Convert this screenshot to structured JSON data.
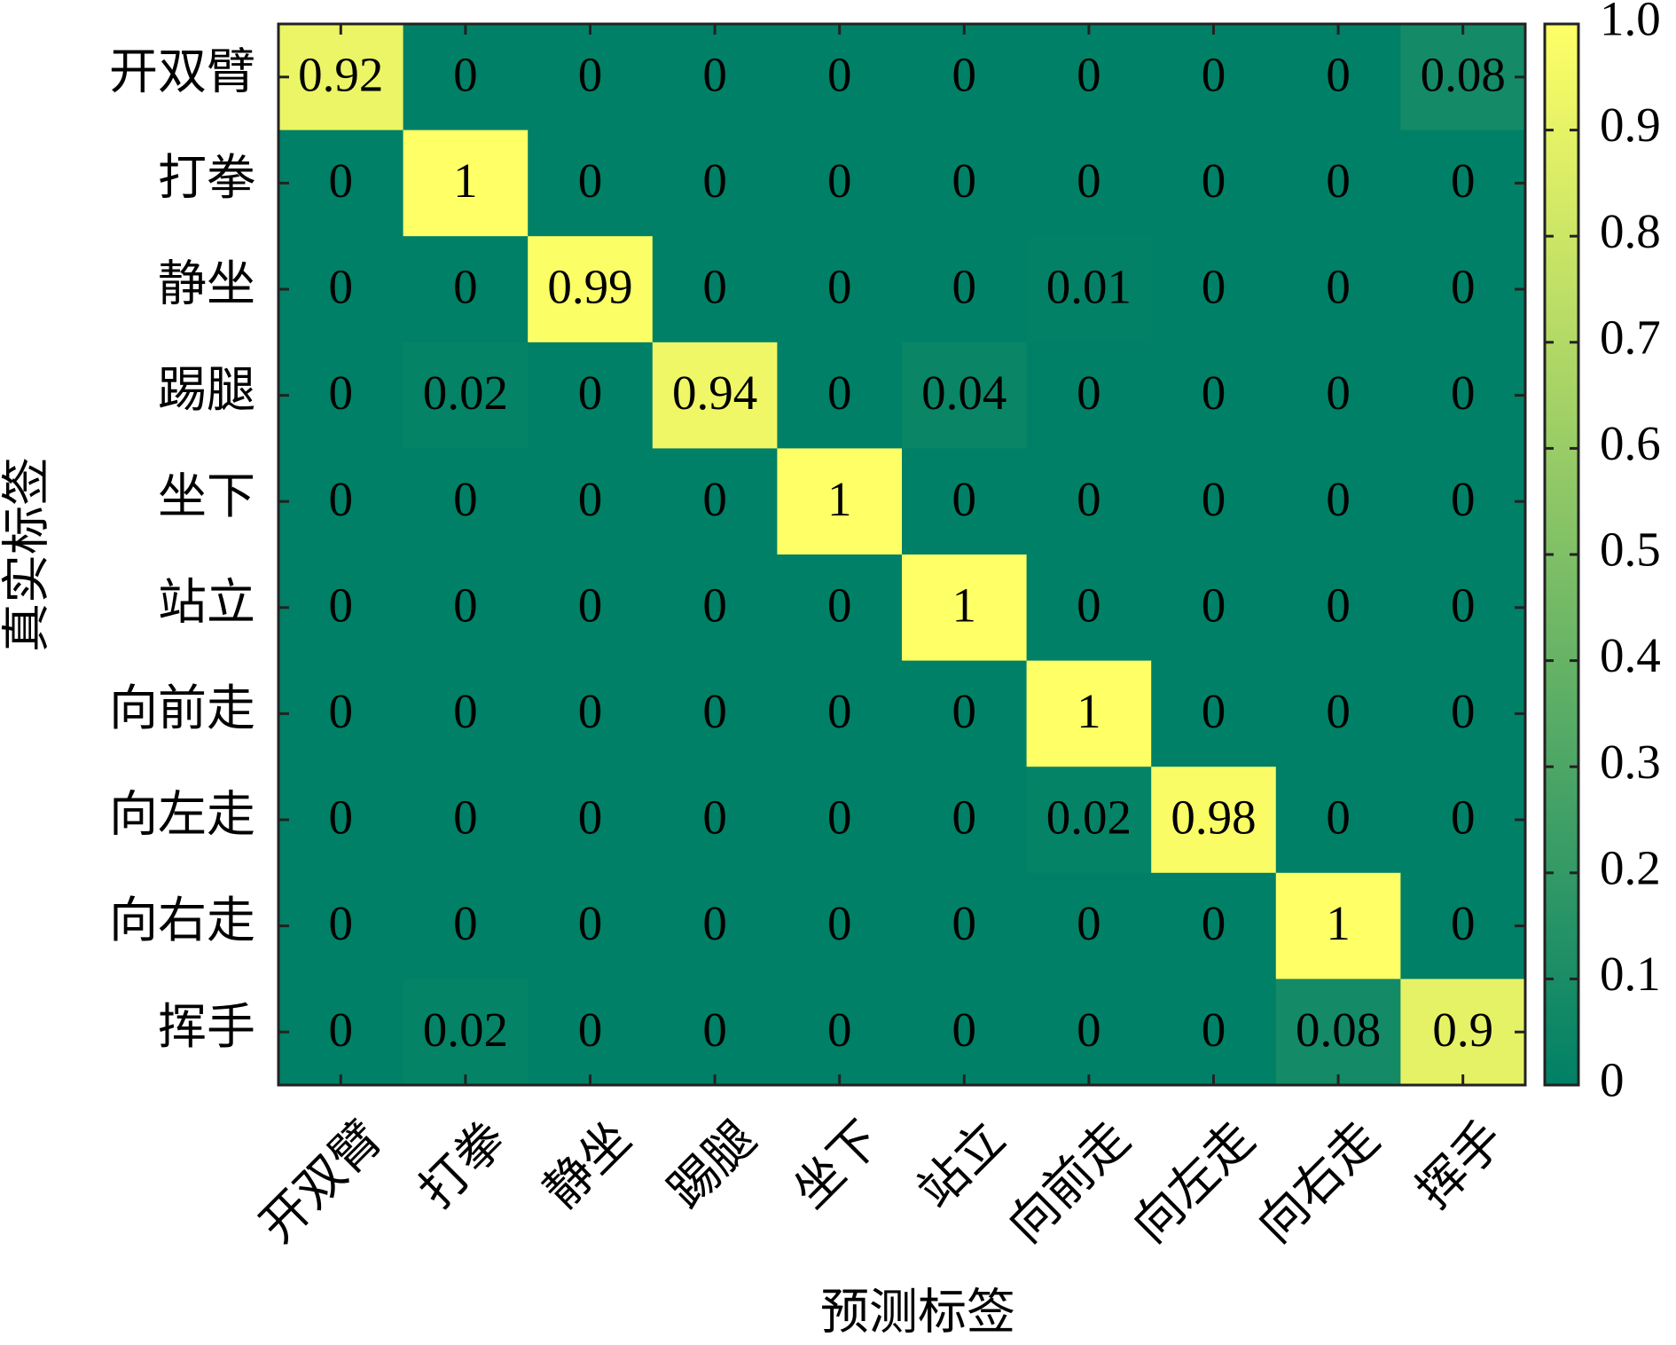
{
  "chart_data": {
    "type": "heatmap",
    "xlabel": "预测标签",
    "ylabel": "真实标签",
    "x_categories": [
      "开双臂",
      "打拳",
      "静坐",
      "踢腿",
      "坐下",
      "站立",
      "向前走",
      "向左走",
      "向右走",
      "挥手"
    ],
    "y_categories": [
      "开双臂",
      "打拳",
      "静坐",
      "踢腿",
      "坐下",
      "站立",
      "向前走",
      "向左走",
      "向右走",
      "挥手"
    ],
    "values": [
      [
        0.92,
        0,
        0,
        0,
        0,
        0,
        0,
        0,
        0,
        0.08
      ],
      [
        0,
        1,
        0,
        0,
        0,
        0,
        0,
        0,
        0,
        0
      ],
      [
        0,
        0,
        0.99,
        0,
        0,
        0,
        0.01,
        0,
        0,
        0
      ],
      [
        0,
        0.02,
        0,
        0.94,
        0,
        0.04,
        0,
        0,
        0,
        0
      ],
      [
        0,
        0,
        0,
        0,
        1,
        0,
        0,
        0,
        0,
        0
      ],
      [
        0,
        0,
        0,
        0,
        0,
        1,
        0,
        0,
        0,
        0
      ],
      [
        0,
        0,
        0,
        0,
        0,
        0,
        1,
        0,
        0,
        0
      ],
      [
        0,
        0,
        0,
        0,
        0,
        0,
        0.02,
        0.98,
        0,
        0
      ],
      [
        0,
        0,
        0,
        0,
        0,
        0,
        0,
        0,
        1,
        0
      ],
      [
        0,
        0.02,
        0,
        0,
        0,
        0,
        0,
        0,
        0.08,
        0.9
      ]
    ],
    "colormap": [
      "#008066",
      "#ffff66"
    ],
    "clim": [
      0,
      1
    ],
    "cticks": [
      0,
      0.1,
      0.2,
      0.3,
      0.4,
      0.5,
      0.6,
      0.7,
      0.8,
      0.9,
      {
        "value": 1,
        "label": "1.0"
      }
    ]
  }
}
